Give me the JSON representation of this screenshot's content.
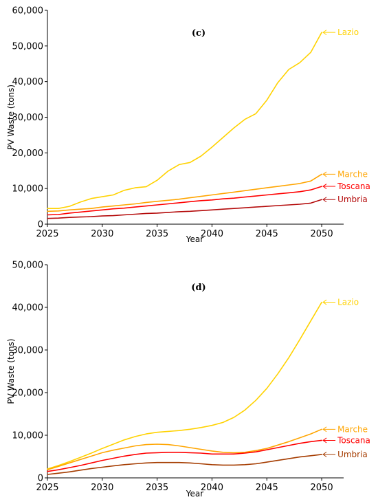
{
  "chart_data": [
    {
      "type": "line",
      "panel_label": "(c)",
      "xlabel": "Year",
      "ylabel": "PV Waste (tons)",
      "xlim": [
        2025,
        2052
      ],
      "ylim": [
        0,
        60000
      ],
      "xticks": [
        "2025",
        "2030",
        "2035",
        "2040",
        "2045",
        "2050"
      ],
      "yticks": [
        "0",
        "10,000",
        "20,000",
        "30,000",
        "40,000",
        "50,000",
        "60,000"
      ],
      "grid": false,
      "x": [
        2025,
        2026,
        2027,
        2028,
        2029,
        2030,
        2031,
        2032,
        2033,
        2034,
        2035,
        2036,
        2037,
        2038,
        2039,
        2040,
        2041,
        2042,
        2043,
        2044,
        2045,
        2046,
        2047,
        2048,
        2049,
        2050
      ],
      "series": [
        {
          "name": "Lazio",
          "color": "#FFD200",
          "values": [
            4400,
            4400,
            5000,
            6200,
            7200,
            7700,
            8200,
            9500,
            10200,
            10500,
            12300,
            14900,
            16700,
            17300,
            19100,
            21600,
            24300,
            27000,
            29400,
            31000,
            34800,
            39700,
            43400,
            45300,
            48200,
            53800
          ]
        },
        {
          "name": "Marche",
          "color": "#FFA500",
          "values": [
            3600,
            3700,
            4000,
            4200,
            4400,
            4800,
            5100,
            5400,
            5700,
            6100,
            6400,
            6700,
            7000,
            7400,
            7800,
            8200,
            8600,
            9000,
            9400,
            9800,
            10200,
            10600,
            11000,
            11400,
            12100,
            14000
          ]
        },
        {
          "name": "Toscana",
          "color": "#FF0000",
          "values": [
            2600,
            2700,
            3100,
            3400,
            3700,
            4000,
            4300,
            4500,
            4800,
            5100,
            5400,
            5700,
            6000,
            6300,
            6600,
            6800,
            7100,
            7300,
            7600,
            7900,
            8200,
            8500,
            8800,
            9100,
            9600,
            10600
          ]
        },
        {
          "name": "Umbria",
          "color": "#B40A0A",
          "values": [
            1600,
            1700,
            1900,
            2000,
            2100,
            2300,
            2400,
            2600,
            2800,
            3000,
            3100,
            3300,
            3500,
            3600,
            3800,
            4000,
            4200,
            4400,
            4600,
            4800,
            5000,
            5200,
            5400,
            5600,
            5900,
            6900
          ]
        }
      ]
    },
    {
      "type": "line",
      "panel_label": "(d)",
      "xlabel": "Year",
      "ylabel": "PV Waste (tons)",
      "xlim": [
        2025,
        2052
      ],
      "ylim": [
        0,
        50000
      ],
      "xticks": [
        "2025",
        "2030",
        "2035",
        "2040",
        "2045",
        "2050"
      ],
      "yticks": [
        "0",
        "10,000",
        "20,000",
        "30,000",
        "40,000",
        "50,000"
      ],
      "grid": false,
      "x": [
        2025,
        2026,
        2027,
        2028,
        2029,
        2030,
        2031,
        2032,
        2033,
        2034,
        2035,
        2036,
        2037,
        2038,
        2039,
        2040,
        2041,
        2042,
        2043,
        2044,
        2045,
        2046,
        2047,
        2048,
        2049,
        2050
      ],
      "series": [
        {
          "name": "Lazio",
          "color": "#FFD200",
          "values": [
            2100,
            2900,
            3800,
            4800,
            5800,
            6900,
            7900,
            8900,
            9700,
            10300,
            10700,
            10900,
            11100,
            11400,
            11800,
            12300,
            13000,
            14200,
            15900,
            18200,
            21000,
            24400,
            28200,
            32400,
            36800,
            41200
          ]
        },
        {
          "name": "Marche",
          "color": "#FFA500",
          "values": [
            1900,
            2700,
            3500,
            4300,
            5100,
            5900,
            6500,
            7000,
            7500,
            7800,
            7900,
            7800,
            7500,
            7100,
            6700,
            6300,
            6000,
            5900,
            6000,
            6400,
            6900,
            7700,
            8500,
            9400,
            10300,
            11400
          ]
        },
        {
          "name": "Toscana",
          "color": "#FF0000",
          "values": [
            1500,
            1900,
            2400,
            2900,
            3500,
            4100,
            4600,
            5100,
            5500,
            5800,
            5900,
            6000,
            6000,
            5900,
            5800,
            5600,
            5600,
            5600,
            5800,
            6100,
            6600,
            7100,
            7600,
            8100,
            8500,
            8800
          ]
        },
        {
          "name": "Umbria",
          "color": "#A53C00",
          "values": [
            800,
            1100,
            1400,
            1800,
            2200,
            2500,
            2800,
            3100,
            3300,
            3500,
            3600,
            3600,
            3600,
            3500,
            3300,
            3100,
            3000,
            3000,
            3100,
            3300,
            3700,
            4100,
            4500,
            4900,
            5200,
            5500
          ]
        }
      ]
    }
  ]
}
